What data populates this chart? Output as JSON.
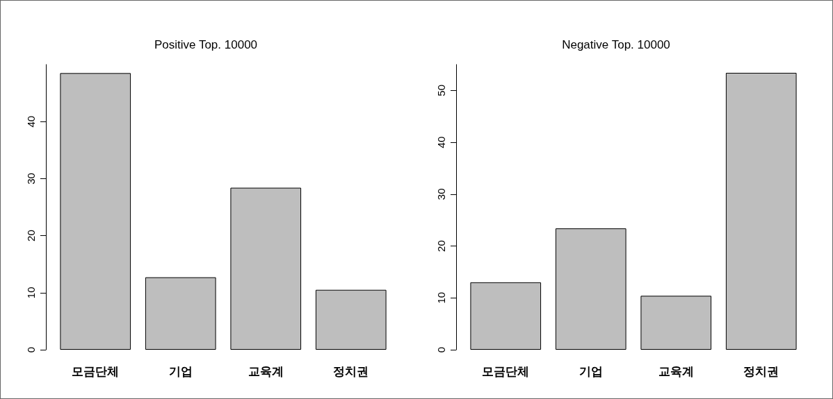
{
  "chart_data": [
    {
      "type": "bar",
      "title": "Positive Top. 10000",
      "categories": [
        "모금단체",
        "기업",
        "교육계",
        "정치권"
      ],
      "values": [
        48.5,
        12.7,
        28.4,
        10.5
      ],
      "color": "#bebebe",
      "ylim": [
        0,
        50
      ],
      "yticks": [
        0,
        10,
        20,
        30,
        40
      ],
      "grid": false
    },
    {
      "type": "bar",
      "title": "Negative Top. 10000",
      "categories": [
        "모금단체",
        "기업",
        "교육계",
        "정치권"
      ],
      "values": [
        13.0,
        23.4,
        10.4,
        53.4
      ],
      "color": "#bebebe",
      "ylim": [
        0,
        55
      ],
      "yticks": [
        0,
        10,
        20,
        30,
        40,
        50
      ],
      "grid": false
    }
  ]
}
